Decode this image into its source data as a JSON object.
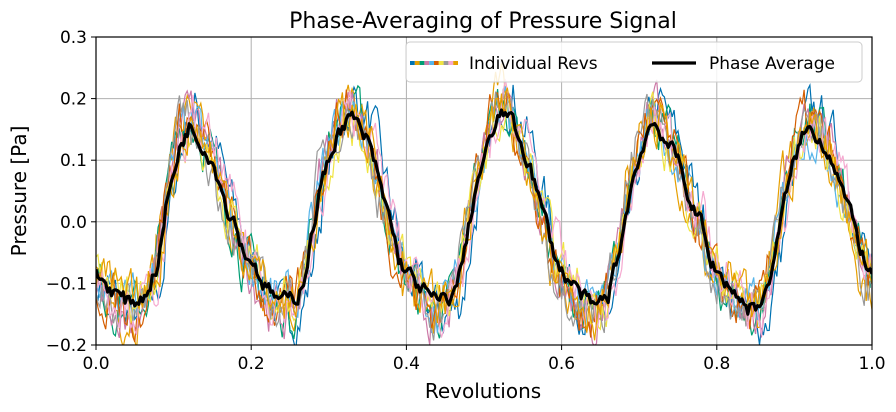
{
  "chart_data": {
    "type": "line",
    "title": "Phase-Averaging of Pressure Signal",
    "xlabel": "Revolutions",
    "ylabel": "Pressure [Pa]",
    "xlim": [
      0.0,
      1.0
    ],
    "ylim": [
      -0.2,
      0.3
    ],
    "xticks": [
      0.0,
      0.2,
      0.4,
      0.6,
      0.8,
      1.0
    ],
    "xtick_labels": [
      "0.0",
      "0.2",
      "0.4",
      "0.6",
      "0.8",
      "1.0"
    ],
    "yticks": [
      -0.2,
      -0.1,
      0.0,
      0.1,
      0.2,
      0.3
    ],
    "ytick_labels": [
      "−0.2",
      "−0.1",
      "0.0",
      "0.1",
      "0.2",
      "0.3"
    ],
    "grid": true,
    "legend": {
      "placement": "top-right",
      "columns": 2,
      "entries": [
        "Individual Revs",
        "Phase Average"
      ]
    },
    "individual_revs_colors": [
      "#0072B2",
      "#E69F00",
      "#009E73",
      "#CC79A7",
      "#56B4E9",
      "#D55E00",
      "#F0E442",
      "#999999",
      "#F5A9D0",
      "#E69F00"
    ],
    "individual_revs_count": 10,
    "series": [
      {
        "name": "Phase Average",
        "color": "#000000",
        "x": [
          0.0,
          0.02,
          0.04,
          0.06,
          0.08,
          0.09,
          0.1,
          0.11,
          0.12,
          0.13,
          0.14,
          0.15,
          0.16,
          0.17,
          0.18,
          0.19,
          0.2,
          0.22,
          0.24,
          0.26,
          0.27,
          0.28,
          0.29,
          0.3,
          0.31,
          0.32,
          0.33,
          0.34,
          0.35,
          0.36,
          0.37,
          0.38,
          0.39,
          0.4,
          0.42,
          0.44,
          0.46,
          0.47,
          0.48,
          0.49,
          0.5,
          0.51,
          0.52,
          0.53,
          0.54,
          0.55,
          0.56,
          0.57,
          0.58,
          0.59,
          0.6,
          0.62,
          0.64,
          0.66,
          0.67,
          0.68,
          0.69,
          0.7,
          0.71,
          0.72,
          0.73,
          0.74,
          0.75,
          0.76,
          0.77,
          0.78,
          0.79,
          0.8,
          0.82,
          0.84,
          0.86,
          0.87,
          0.88,
          0.89,
          0.9,
          0.91,
          0.92,
          0.93,
          0.94,
          0.95,
          0.96,
          0.97,
          0.98,
          0.99,
          1.0
        ],
        "y": [
          -0.085,
          -0.11,
          -0.13,
          -0.125,
          -0.07,
          0.02,
          0.08,
          0.13,
          0.155,
          0.14,
          0.12,
          0.1,
          0.06,
          0.02,
          0.0,
          -0.05,
          -0.06,
          -0.11,
          -0.13,
          -0.12,
          -0.08,
          -0.01,
          0.06,
          0.1,
          0.14,
          0.16,
          0.17,
          0.15,
          0.13,
          0.09,
          0.04,
          0.0,
          -0.06,
          -0.08,
          -0.11,
          -0.13,
          -0.12,
          -0.08,
          -0.01,
          0.06,
          0.1,
          0.14,
          0.17,
          0.18,
          0.15,
          0.12,
          0.09,
          0.04,
          0.0,
          -0.05,
          -0.08,
          -0.11,
          -0.14,
          -0.12,
          -0.07,
          -0.01,
          0.06,
          0.1,
          0.15,
          0.16,
          0.14,
          0.12,
          0.1,
          0.06,
          0.02,
          0.0,
          -0.06,
          -0.08,
          -0.11,
          -0.14,
          -0.13,
          -0.08,
          -0.02,
          0.05,
          0.1,
          0.14,
          0.15,
          0.14,
          0.12,
          0.1,
          0.06,
          0.02,
          -0.02,
          -0.06,
          -0.09
        ]
      }
    ]
  }
}
